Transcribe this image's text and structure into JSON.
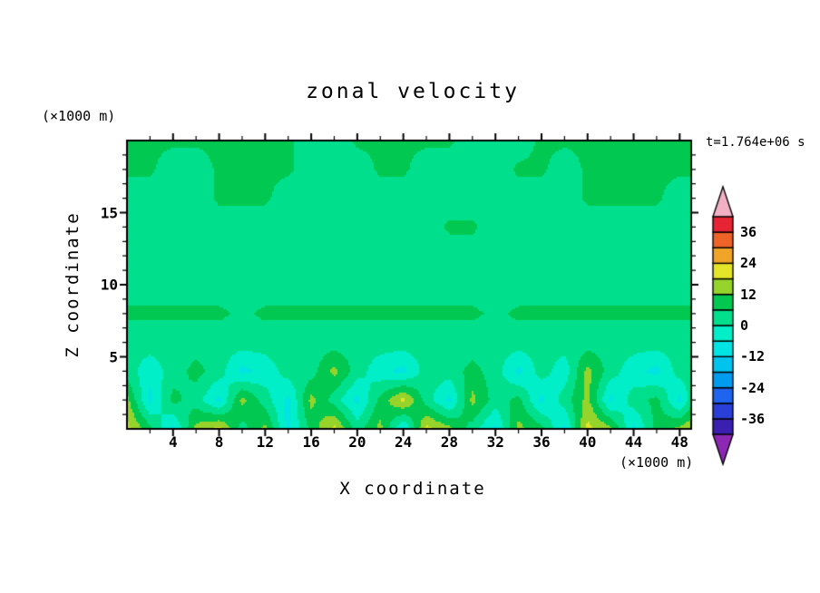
{
  "title": "zonal velocity",
  "time_label": "t=1.764e+06 s",
  "axes": {
    "x_label": "X coordinate",
    "z_label": "Z coordinate",
    "x_unit": "(×1000 m)",
    "z_unit": "(×1000 m)"
  },
  "frame_color": "#000000",
  "background": "#ffffff",
  "chart_data": {
    "type": "heatmap",
    "subtype": "filled-contour",
    "title": "zonal velocity",
    "xlabel": "X coordinate",
    "ylabel": "Z coordinate",
    "x_range": [
      0,
      49
    ],
    "z_range": [
      0,
      20
    ],
    "x_major_ticks": [
      4,
      8,
      12,
      16,
      20,
      24,
      28,
      32,
      36,
      40,
      44,
      48
    ],
    "x_minor_step": 2,
    "z_major_ticks": [
      5,
      10,
      15
    ],
    "z_minor_step": 1,
    "contour_levels": {
      "min": -42,
      "max": 42,
      "step": 6
    },
    "colorbar_labels": [
      36,
      24,
      12,
      0,
      -12,
      -24,
      -36
    ],
    "palette": {
      "band_colors": [
        "#3a1fb0",
        "#2a3fd8",
        "#1e64ee",
        "#009cf0",
        "#00c4ee",
        "#00e4e4",
        "#00eec8",
        "#00e08c",
        "#00c850",
        "#96d42c",
        "#e4e428",
        "#f0a428",
        "#ee6428",
        "#e62434"
      ],
      "over_color": "#f2b0c4",
      "under_color": "#8c28b4"
    },
    "grid": {
      "x": [
        0,
        2,
        4,
        6,
        8,
        10,
        12,
        14,
        16,
        18,
        20,
        22,
        24,
        26,
        28,
        30,
        32,
        34,
        36,
        38,
        40,
        42,
        44,
        46,
        48,
        50
      ],
      "z": [
        0,
        2,
        4,
        6,
        8,
        10,
        12,
        14,
        16,
        18,
        20
      ],
      "values": [
        [
          20,
          8,
          -8,
          14,
          20,
          3,
          14,
          -8,
          8,
          20,
          3,
          14,
          -8,
          20,
          14,
          3,
          -8,
          14,
          8,
          -8,
          20,
          14,
          -8,
          8,
          14,
          20
        ],
        [
          14,
          -8,
          8,
          3,
          -8,
          14,
          3,
          -8,
          14,
          3,
          -8,
          8,
          20,
          3,
          -8,
          14,
          3,
          8,
          -8,
          3,
          14,
          -8,
          3,
          8,
          -8,
          14
        ],
        [
          3,
          -4,
          3,
          8,
          3,
          -8,
          -4,
          3,
          3,
          14,
          3,
          -4,
          -8,
          3,
          3,
          8,
          3,
          -8,
          3,
          -4,
          14,
          3,
          -4,
          -8,
          3,
          3
        ],
        [
          3,
          3,
          3,
          3,
          3,
          3,
          3,
          3,
          3,
          3,
          3,
          3,
          3,
          3,
          3,
          3,
          3,
          3,
          3,
          3,
          3,
          3,
          3,
          3,
          3,
          3
        ],
        [
          7,
          7,
          7,
          7,
          7,
          5,
          7,
          7,
          7,
          7,
          7,
          7,
          7,
          7,
          7,
          7,
          5,
          7,
          7,
          7,
          7,
          7,
          7,
          7,
          7,
          7
        ],
        [
          3,
          3,
          3,
          3,
          3,
          3,
          3,
          3,
          3,
          3,
          3,
          3,
          3,
          3,
          3,
          3,
          3,
          3,
          3,
          3,
          3,
          3,
          3,
          3,
          3,
          3
        ],
        [
          3,
          3,
          3,
          3,
          3,
          3,
          3,
          3,
          3,
          3,
          3,
          3,
          3,
          3,
          3,
          3,
          3,
          3,
          3,
          3,
          3,
          3,
          3,
          3,
          3,
          3
        ],
        [
          3,
          3,
          3,
          3,
          3,
          3,
          3,
          3,
          3,
          3,
          3,
          3,
          3,
          3,
          7,
          7,
          3,
          3,
          3,
          3,
          3,
          3,
          3,
          3,
          3,
          3
        ],
        [
          3,
          3,
          3,
          3,
          7,
          7,
          7,
          3,
          3,
          3,
          3,
          3,
          3,
          3,
          3,
          3,
          3,
          3,
          3,
          3,
          7,
          7,
          7,
          7,
          3,
          3
        ],
        [
          7,
          7,
          3,
          3,
          7,
          7,
          7,
          7,
          3,
          3,
          3,
          7,
          7,
          3,
          3,
          3,
          3,
          7,
          7,
          3,
          7,
          7,
          7,
          7,
          7,
          7
        ],
        [
          7,
          7,
          7,
          7,
          7,
          7,
          7,
          7,
          3,
          3,
          7,
          7,
          7,
          7,
          7,
          3,
          3,
          3,
          7,
          7,
          7,
          7,
          7,
          7,
          7,
          7
        ]
      ]
    }
  }
}
